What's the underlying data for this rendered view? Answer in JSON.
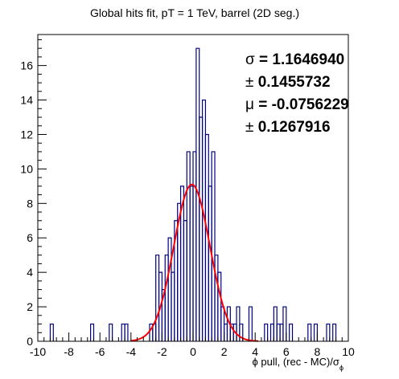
{
  "chart_data": {
    "type": "histogram",
    "title": "Global hits fit, pT = 1 TeV, barrel (2D seg.)",
    "xlabel": "ϕ pull, (rec - MC)/σ",
    "xlabel_subscript": "ϕ",
    "ylabel": "",
    "xlim": [
      -10,
      10
    ],
    "ylim": [
      0,
      17.8
    ],
    "x_ticks": [
      -10,
      -8,
      -6,
      -4,
      -2,
      0,
      2,
      4,
      6,
      8,
      10
    ],
    "y_ticks": [
      0,
      2,
      4,
      6,
      8,
      10,
      12,
      14,
      16
    ],
    "bin_width": 0.2,
    "grid": false,
    "histogram": {
      "color": "#000080",
      "bins": [
        {
          "x0": -9.2,
          "x1": -9.0,
          "count": 1
        },
        {
          "x0": -6.6,
          "x1": -6.4,
          "count": 1
        },
        {
          "x0": -5.4,
          "x1": -5.2,
          "count": 1
        },
        {
          "x0": -4.6,
          "x1": -4.4,
          "count": 1
        },
        {
          "x0": -4.4,
          "x1": -4.2,
          "count": 1
        },
        {
          "x0": -2.8,
          "x1": -2.6,
          "count": 1
        },
        {
          "x0": -2.6,
          "x1": -2.4,
          "count": 1
        },
        {
          "x0": -2.4,
          "x1": -2.2,
          "count": 5
        },
        {
          "x0": -2.2,
          "x1": -2.0,
          "count": 4
        },
        {
          "x0": -2.0,
          "x1": -1.8,
          "count": 3
        },
        {
          "x0": -1.8,
          "x1": -1.6,
          "count": 5
        },
        {
          "x0": -1.6,
          "x1": -1.4,
          "count": 6
        },
        {
          "x0": -1.4,
          "x1": -1.2,
          "count": 4
        },
        {
          "x0": -1.2,
          "x1": -1.0,
          "count": 7
        },
        {
          "x0": -1.0,
          "x1": -0.8,
          "count": 8
        },
        {
          "x0": -0.8,
          "x1": -0.6,
          "count": 9
        },
        {
          "x0": -0.6,
          "x1": -0.4,
          "count": 7
        },
        {
          "x0": -0.4,
          "x1": -0.2,
          "count": 11
        },
        {
          "x0": -0.2,
          "x1": 0.0,
          "count": 9
        },
        {
          "x0": 0.0,
          "x1": 0.2,
          "count": 11
        },
        {
          "x0": 0.2,
          "x1": 0.4,
          "count": 17
        },
        {
          "x0": 0.4,
          "x1": 0.6,
          "count": 13
        },
        {
          "x0": 0.6,
          "x1": 0.8,
          "count": 14
        },
        {
          "x0": 0.8,
          "x1": 1.0,
          "count": 12
        },
        {
          "x0": 1.0,
          "x1": 1.2,
          "count": 9
        },
        {
          "x0": 1.2,
          "x1": 1.4,
          "count": 11
        },
        {
          "x0": 1.4,
          "x1": 1.6,
          "count": 5
        },
        {
          "x0": 1.6,
          "x1": 1.8,
          "count": 4
        },
        {
          "x0": 1.8,
          "x1": 2.0,
          "count": 2
        },
        {
          "x0": 2.0,
          "x1": 2.2,
          "count": 1
        },
        {
          "x0": 2.2,
          "x1": 2.4,
          "count": 2
        },
        {
          "x0": 2.4,
          "x1": 2.6,
          "count": 1
        },
        {
          "x0": 2.6,
          "x1": 2.8,
          "count": 1
        },
        {
          "x0": 2.8,
          "x1": 3.0,
          "count": 2
        },
        {
          "x0": 3.0,
          "x1": 3.2,
          "count": 1
        },
        {
          "x0": 3.6,
          "x1": 3.8,
          "count": 2
        },
        {
          "x0": 4.6,
          "x1": 4.8,
          "count": 1
        },
        {
          "x0": 5.0,
          "x1": 5.2,
          "count": 1
        },
        {
          "x0": 5.2,
          "x1": 5.4,
          "count": 2
        },
        {
          "x0": 5.4,
          "x1": 5.6,
          "count": 1
        },
        {
          "x0": 5.6,
          "x1": 5.8,
          "count": 1
        },
        {
          "x0": 5.8,
          "x1": 6.0,
          "count": 2
        },
        {
          "x0": 6.2,
          "x1": 6.4,
          "count": 1
        },
        {
          "x0": 7.4,
          "x1": 7.6,
          "count": 1
        },
        {
          "x0": 7.8,
          "x1": 8.0,
          "count": 1
        },
        {
          "x0": 8.6,
          "x1": 8.8,
          "count": 1
        },
        {
          "x0": 9.0,
          "x1": 9.2,
          "count": 1
        }
      ]
    },
    "fit": {
      "type": "gaussian",
      "color": "#ff0000",
      "amplitude": 9.1,
      "mean": -0.0756229,
      "sigma": 1.164694,
      "range": [
        -4.0,
        4.2
      ]
    },
    "stats": [
      {
        "symbol": "σ",
        "text": " = 1.1646940"
      },
      {
        "symbol": "±",
        "text": " 0.1455732"
      },
      {
        "symbol": "μ",
        "text": " = -0.0756229"
      },
      {
        "symbol": "±",
        "text": " 0.1267916"
      }
    ]
  }
}
